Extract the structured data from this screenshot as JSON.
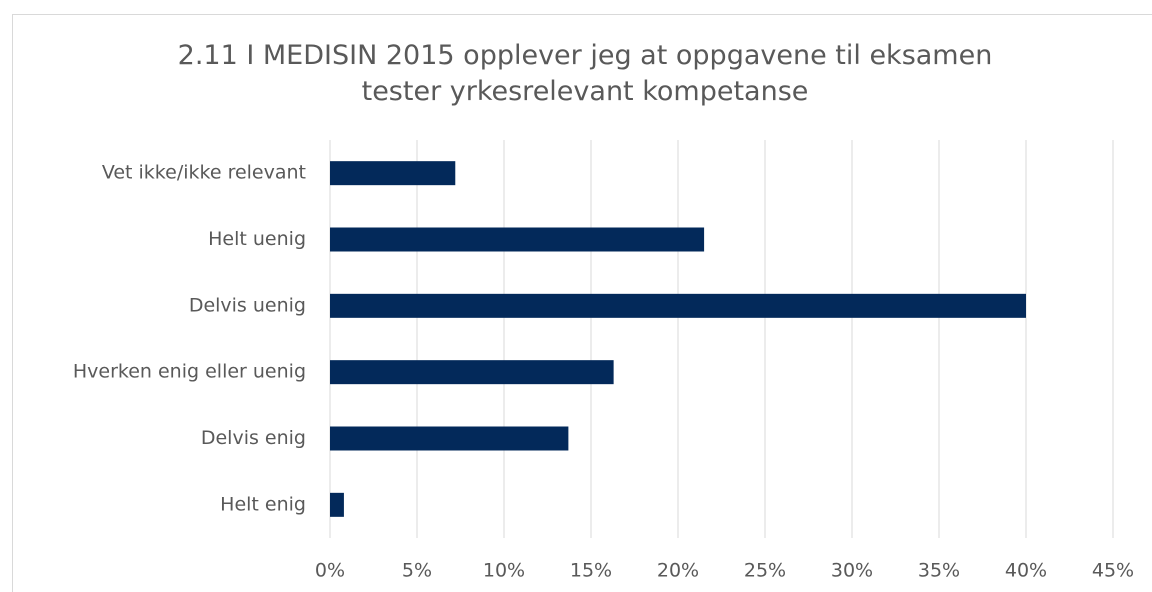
{
  "chart_data": {
    "type": "bar",
    "orientation": "horizontal",
    "title": "2.11 I MEDISIN 2015 opplever jeg at oppgavene til eksamen tester yrkesrelevant kompetanse",
    "categories": [
      "Vet ikke/ikke relevant",
      "Helt uenig",
      "Delvis uenig",
      "Hverken enig eller uenig",
      "Delvis enig",
      "Helt enig"
    ],
    "values": [
      7.2,
      21.5,
      40.0,
      16.3,
      13.7,
      0.8
    ],
    "color": "#03295a",
    "xlim": [
      0,
      45
    ],
    "xticks": [
      {
        "value": 0,
        "label": "0%"
      },
      {
        "value": 5,
        "label": "5%"
      },
      {
        "value": 10,
        "label": "10%"
      },
      {
        "value": 15,
        "label": "15%"
      },
      {
        "value": 20,
        "label": "20%"
      },
      {
        "value": 25,
        "label": "25%"
      },
      {
        "value": 30,
        "label": "30%"
      },
      {
        "value": 35,
        "label": "35%"
      },
      {
        "value": 40,
        "label": "40%"
      },
      {
        "value": 45,
        "label": "45%"
      }
    ],
    "grid": true
  }
}
